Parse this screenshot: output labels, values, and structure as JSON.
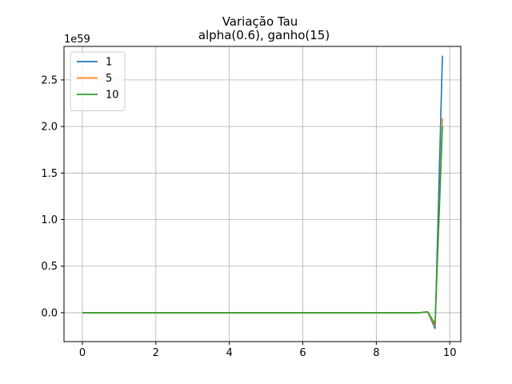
{
  "chart_data": {
    "type": "line",
    "title": "Variação Tau",
    "subtitle": "alpha(0.6), ganho(15)",
    "xlabel": "",
    "ylabel": "",
    "y_offset_label": "1e59",
    "xlim": [
      -0.5,
      10.3
    ],
    "ylim": [
      -0.31,
      2.86
    ],
    "xticks": [
      0,
      2,
      4,
      6,
      8,
      10
    ],
    "yticks": [
      0.0,
      0.5,
      1.0,
      1.5,
      2.0,
      2.5
    ],
    "xtick_labels": [
      "0",
      "2",
      "4",
      "6",
      "8",
      "10"
    ],
    "ytick_labels": [
      "0.0",
      "0.5",
      "1.0",
      "1.5",
      "2.0",
      "2.5"
    ],
    "grid": true,
    "legend_position": "upper-left",
    "x": [
      0,
      0.2,
      0.4,
      0.6,
      0.8,
      1.0,
      1.2,
      1.4,
      1.6,
      1.8,
      2.0,
      2.2,
      2.4,
      2.6,
      2.8,
      3.0,
      3.2,
      3.4,
      3.6,
      3.8,
      4.0,
      4.2,
      4.4,
      4.6,
      4.8,
      5.0,
      5.2,
      5.4,
      5.6,
      5.8,
      6.0,
      6.2,
      6.4,
      6.6,
      6.8,
      7.0,
      7.2,
      7.4,
      7.6,
      7.8,
      8.0,
      8.2,
      8.4,
      8.6,
      8.8,
      9.0,
      9.2,
      9.4,
      9.6,
      9.8
    ],
    "series": [
      {
        "name": "1",
        "color": "#1f77b4",
        "values": [
          0,
          0,
          0,
          0,
          0,
          0,
          0,
          0,
          0,
          0,
          0,
          0,
          0,
          0,
          0,
          0,
          0,
          0,
          0,
          0,
          0,
          0,
          0,
          0,
          0,
          0,
          0,
          0,
          0,
          0,
          0,
          0,
          0,
          0,
          0,
          0,
          0,
          0,
          0,
          0,
          0,
          0,
          0,
          0,
          0,
          0,
          0.001,
          0.01,
          -0.17,
          2.76
        ]
      },
      {
        "name": "5",
        "color": "#ff7f0e",
        "values": [
          0,
          0,
          0,
          0,
          0,
          0,
          0,
          0,
          0,
          0,
          0,
          0,
          0,
          0,
          0,
          0,
          0,
          0,
          0,
          0,
          0,
          0,
          0,
          0,
          0,
          0,
          0,
          0,
          0,
          0,
          0,
          0,
          0,
          0,
          0,
          0,
          0,
          0,
          0,
          0,
          0,
          0,
          0,
          0,
          0,
          0,
          0.001,
          0.01,
          -0.14,
          2.09
        ]
      },
      {
        "name": "10",
        "color": "#2ca02c",
        "values": [
          0,
          0,
          0,
          0,
          0,
          0,
          0,
          0,
          0,
          0,
          0,
          0,
          0,
          0,
          0,
          0,
          0,
          0,
          0,
          0,
          0,
          0,
          0,
          0,
          0,
          0,
          0,
          0,
          0,
          0,
          0,
          0,
          0,
          0,
          0,
          0,
          0,
          0,
          0,
          0,
          0,
          0,
          0,
          0,
          0,
          0,
          0.001,
          0.01,
          -0.12,
          2.0
        ]
      }
    ]
  }
}
